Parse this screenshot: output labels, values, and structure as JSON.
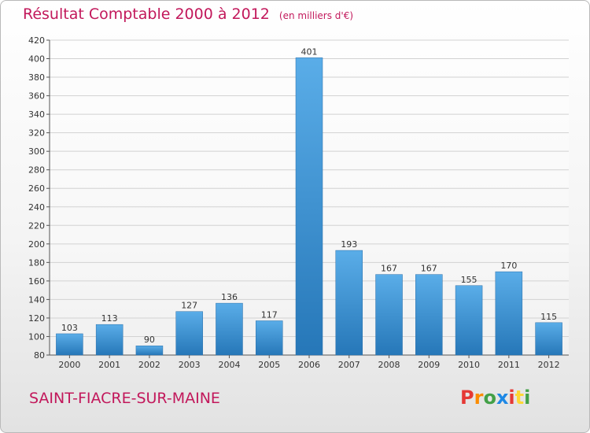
{
  "header": {
    "title": "Résultat Comptable 2000 à 2012",
    "unit": "(en milliers d'€)"
  },
  "footer": {
    "place": "SAINT-FIACRE-SUR-MAINE",
    "logo": "Proxiti"
  },
  "colors": {
    "title": "#c2185b",
    "bar_light": "#5aade8",
    "bar_dark": "#2677b8",
    "logo_letters": [
      "#e53935",
      "#fb8c00",
      "#43a047",
      "#1e88e5",
      "#e53935",
      "#fdd835",
      "#43a047"
    ]
  },
  "chart_data": {
    "type": "bar",
    "title": "Résultat Comptable 2000 à 2012",
    "xlabel": "",
    "ylabel": "",
    "categories": [
      "2000",
      "2001",
      "2002",
      "2003",
      "2004",
      "2005",
      "2006",
      "2007",
      "2008",
      "2009",
      "2010",
      "2011",
      "2012"
    ],
    "values": [
      103,
      113,
      90,
      127,
      136,
      117,
      401,
      193,
      167,
      167,
      155,
      170,
      115
    ],
    "ylim": [
      80,
      420
    ],
    "ytick_step": 20,
    "grid": true,
    "legend": "none"
  }
}
